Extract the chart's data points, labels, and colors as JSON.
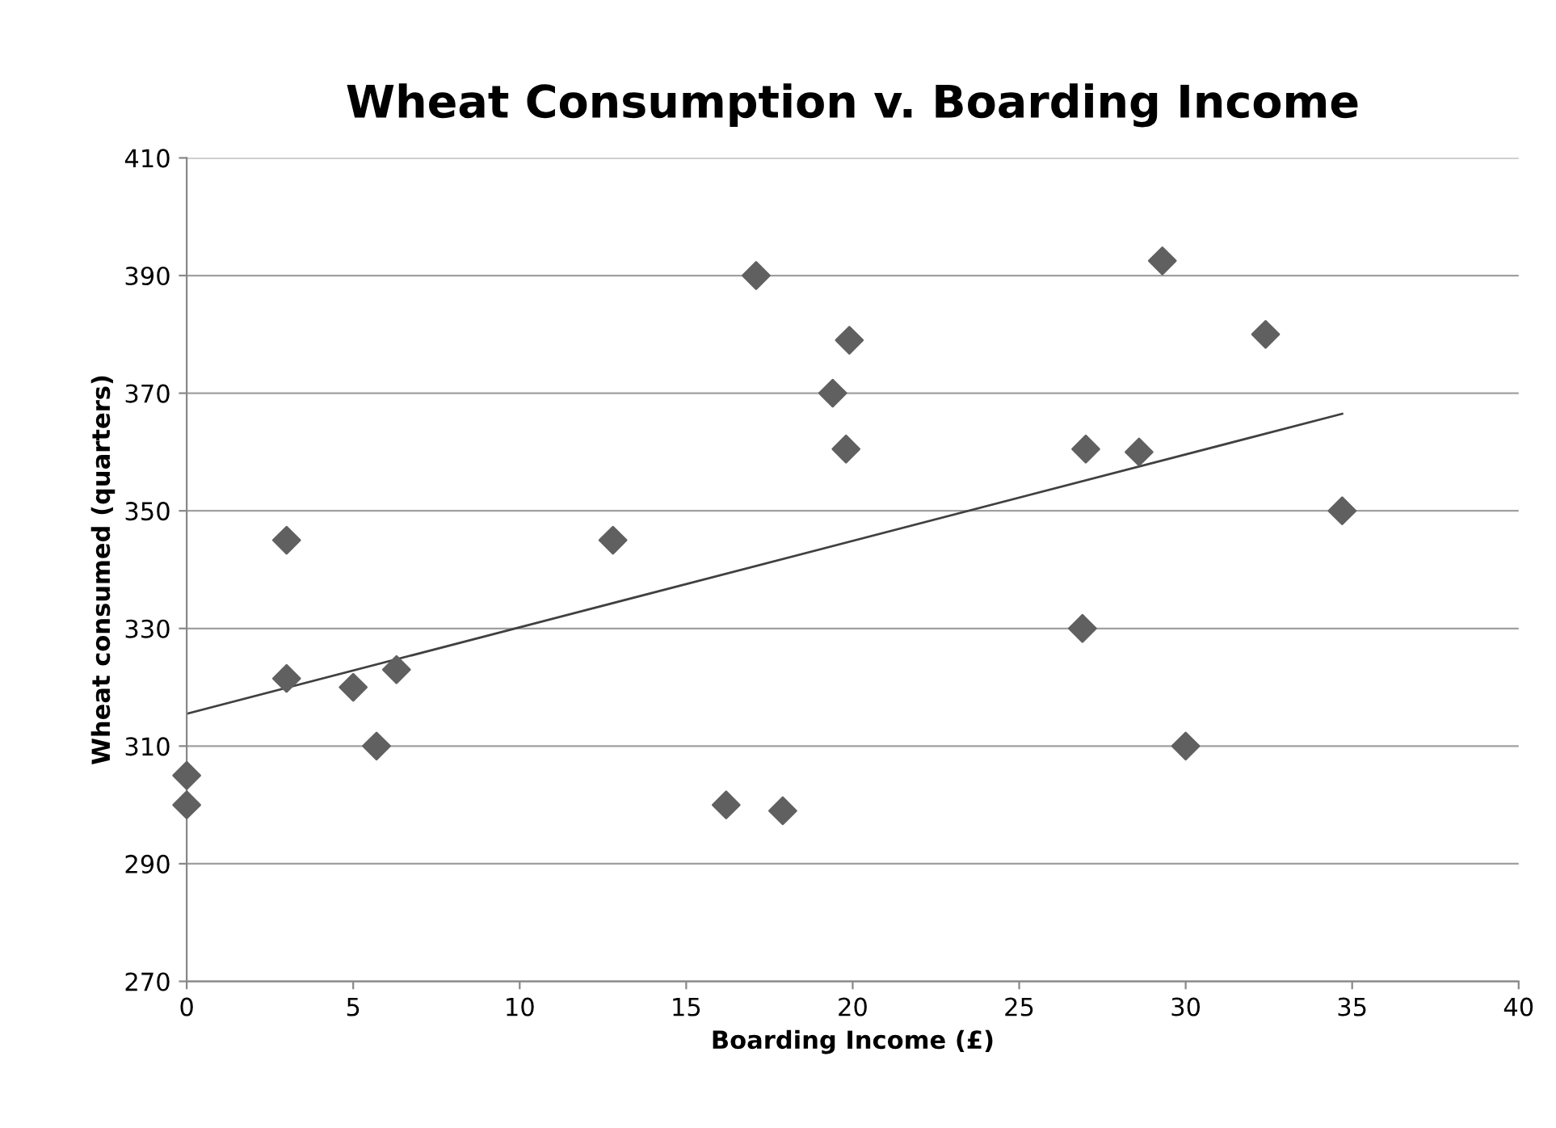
{
  "chart_data": {
    "type": "scatter",
    "title": "Wheat Consumption v. Boarding Income",
    "xlabel": "Boarding Income (£)",
    "ylabel": "Wheat consumed (quarters)",
    "series": [
      {
        "color": "#606060",
        "marker": "diamond",
        "x": [
          0,
          0,
          3,
          3,
          5,
          5.7,
          6.3,
          12.8,
          16.2,
          17.1,
          17.9,
          19.4,
          19.9,
          19.8,
          26.9,
          27,
          28.6,
          29.3,
          30,
          32.4,
          34.7
        ],
        "values": [
          305,
          300,
          345,
          321.5,
          320,
          310,
          323,
          345,
          300,
          390,
          299,
          370,
          379,
          360.5,
          330,
          360.5,
          360,
          392.5,
          310,
          380,
          350
        ]
      },
      {
        "type": "line",
        "color": "#404040",
        "marker": "none",
        "x": [
          0,
          34.7
        ],
        "values": [
          315.5,
          366.5
        ]
      }
    ],
    "xlim": [
      0,
      40
    ],
    "xticks": [
      0,
      5,
      10,
      15,
      20,
      25,
      30,
      35,
      40
    ],
    "ylim": [
      270,
      410
    ],
    "yticks": [
      270,
      290,
      310,
      330,
      350,
      370,
      390,
      410
    ],
    "grid": "y"
  }
}
